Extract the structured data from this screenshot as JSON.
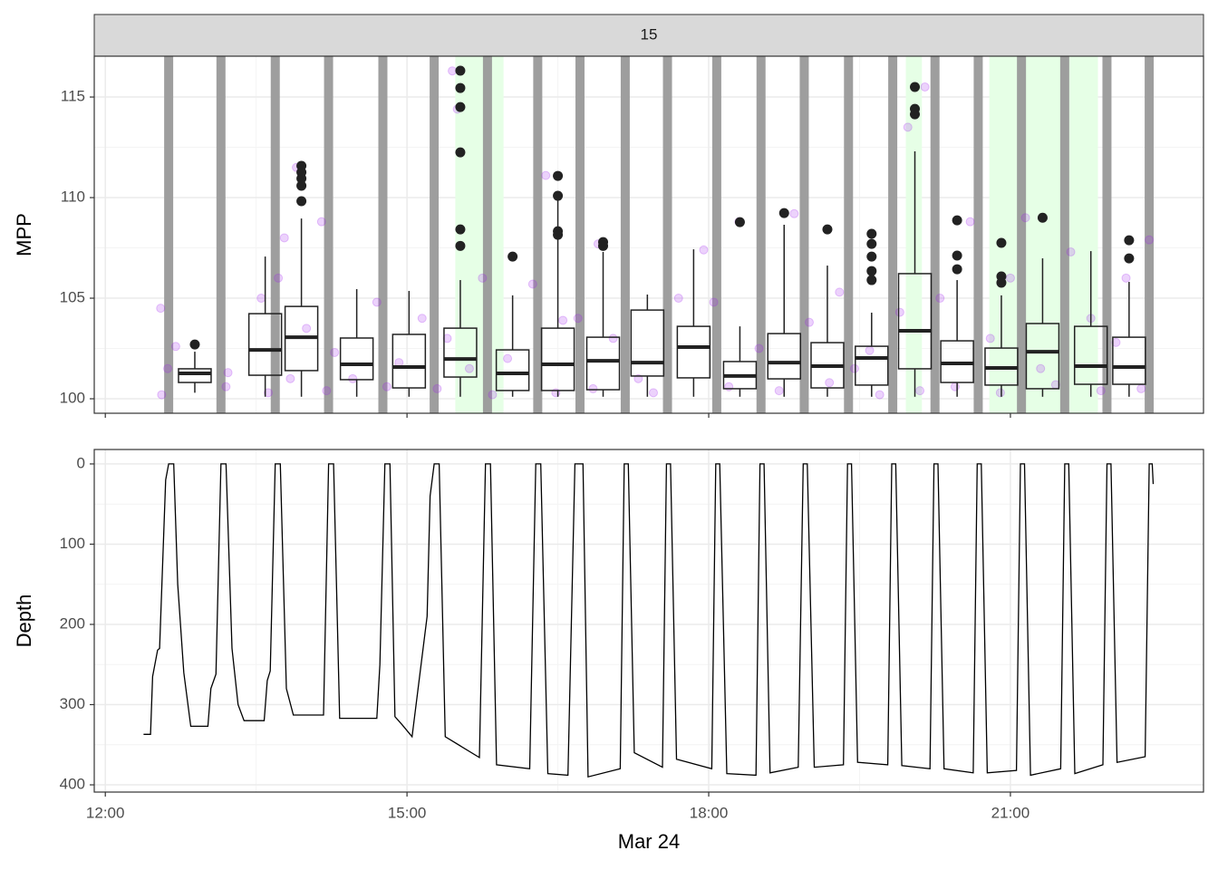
{
  "chart_data": [
    {
      "type": "box",
      "strip": "15",
      "ylabel": "MPP",
      "xlim": [
        11.89,
        22.92
      ],
      "ylim": [
        99.28,
        117.03
      ],
      "yticks": [
        100,
        105,
        110,
        115
      ],
      "grid": true,
      "bands": [
        {
          "color": "#e6ffe6",
          "intervals": [
            [
              15.48,
              15.96
            ],
            [
              19.96,
              20.12
            ],
            [
              20.79,
              21.87
            ]
          ]
        },
        {
          "color": "#999999",
          "intervals": [
            [
              12.585,
              12.675
            ],
            [
              13.105,
              13.195
            ],
            [
              13.645,
              13.735
            ],
            [
              14.175,
              14.265
            ],
            [
              14.715,
              14.805
            ],
            [
              15.225,
              15.315
            ],
            [
              15.755,
              15.845
            ],
            [
              16.255,
              16.345
            ],
            [
              16.675,
              16.765
            ],
            [
              17.125,
              17.215
            ],
            [
              17.545,
              17.635
            ],
            [
              18.035,
              18.125
            ],
            [
              18.475,
              18.565
            ],
            [
              18.905,
              18.995
            ],
            [
              19.345,
              19.435
            ],
            [
              19.785,
              19.875
            ],
            [
              20.205,
              20.295
            ],
            [
              20.635,
              20.725
            ],
            [
              21.065,
              21.155
            ],
            [
              21.495,
              21.585
            ],
            [
              21.915,
              22.005
            ],
            [
              22.335,
              22.425
            ]
          ]
        }
      ],
      "points": {
        "color": "#a020f0",
        "x": [
          12.55,
          12.56,
          12.62,
          12.7,
          13.22,
          13.2,
          13.55,
          13.62,
          13.72,
          13.78,
          13.84,
          13.9,
          14.0,
          14.15,
          14.2,
          14.28,
          14.46,
          14.7,
          14.8,
          14.92,
          15.15,
          15.3,
          15.4,
          15.45,
          15.5,
          15.62,
          15.75,
          15.85,
          16.0,
          16.25,
          16.38,
          16.48,
          16.55,
          16.7,
          16.85,
          16.9,
          17.05,
          17.3,
          17.45,
          17.7,
          17.95,
          18.05,
          18.2,
          18.3,
          18.5,
          18.7,
          18.85,
          19.0,
          19.2,
          19.3,
          19.45,
          19.6,
          19.7,
          19.9,
          19.98,
          20.1,
          20.15,
          20.3,
          20.45,
          20.6,
          20.8,
          20.9,
          21.0,
          21.15,
          21.3,
          21.45,
          21.6,
          21.8,
          21.9,
          22.05,
          22.15,
          22.3,
          22.38
        ],
        "y": [
          104.5,
          100.2,
          101.5,
          102.6,
          101.3,
          100.6,
          105.0,
          100.3,
          106.0,
          108.0,
          101.0,
          111.5,
          103.5,
          108.8,
          100.4,
          102.3,
          101.0,
          104.8,
          100.6,
          101.8,
          104.0,
          100.5,
          103.0,
          116.3,
          114.4,
          101.5,
          106.0,
          100.2,
          102.0,
          105.7,
          111.1,
          100.3,
          103.9,
          104.0,
          100.5,
          107.7,
          103.0,
          101.0,
          100.3,
          105.0,
          107.4,
          104.8,
          100.6,
          108.8,
          102.5,
          100.4,
          109.2,
          103.8,
          100.8,
          105.3,
          101.5,
          102.4,
          100.2,
          104.3,
          113.5,
          100.4,
          115.5,
          105.0,
          100.6,
          108.8,
          103.0,
          100.3,
          106.0,
          109.0,
          101.5,
          100.7,
          107.3,
          104.0,
          100.4,
          102.8,
          106.0,
          100.5,
          107.9
        ]
      },
      "boxes": [
        {
          "x": 12.89,
          "low": 100.3,
          "q1": 100.81,
          "median": 101.26,
          "q3": 101.49,
          "high": 102.34,
          "outliers": [
            102.7
          ]
        },
        {
          "x": 13.59,
          "low": 100.1,
          "q1": 101.17,
          "median": 102.43,
          "q3": 104.23,
          "high": 107.07,
          "outliers": []
        },
        {
          "x": 13.95,
          "low": 100.1,
          "q1": 101.4,
          "median": 103.06,
          "q3": 104.59,
          "high": 108.96,
          "outliers": [
            111.58,
            111.26,
            110.95,
            110.59,
            109.82
          ]
        },
        {
          "x": 14.5,
          "low": 100.1,
          "q1": 100.95,
          "median": 101.71,
          "q3": 103.02,
          "high": 105.45,
          "outliers": []
        },
        {
          "x": 15.02,
          "low": 100.1,
          "q1": 100.54,
          "median": 101.58,
          "q3": 103.2,
          "high": 105.36,
          "outliers": []
        },
        {
          "x": 15.53,
          "low": 100.1,
          "q1": 101.08,
          "median": 101.98,
          "q3": 103.51,
          "high": 105.9,
          "outliers": [
            116.31,
            115.45,
            114.5,
            112.25,
            108.42,
            107.6
          ]
        },
        {
          "x": 16.05,
          "low": 100.1,
          "q1": 100.41,
          "median": 101.26,
          "q3": 102.43,
          "high": 105.14,
          "outliers": [
            107.07
          ]
        },
        {
          "x": 16.5,
          "low": 100.1,
          "q1": 100.41,
          "median": 101.71,
          "q3": 103.51,
          "high": 109.9,
          "outliers": [
            111.08,
            110.09,
            108.33,
            108.15
          ]
        },
        {
          "x": 16.95,
          "low": 100.1,
          "q1": 100.45,
          "median": 101.89,
          "q3": 103.06,
          "high": 107.3,
          "outliers": [
            107.79,
            107.6
          ]
        },
        {
          "x": 17.39,
          "low": 100.1,
          "q1": 101.13,
          "median": 101.8,
          "q3": 104.41,
          "high": 105.18,
          "outliers": []
        },
        {
          "x": 17.85,
          "low": 100.1,
          "q1": 101.04,
          "median": 102.57,
          "q3": 103.6,
          "high": 107.43,
          "outliers": []
        },
        {
          "x": 18.31,
          "low": 100.1,
          "q1": 100.5,
          "median": 101.13,
          "q3": 101.85,
          "high": 103.6,
          "outliers": [
            108.78
          ]
        },
        {
          "x": 18.75,
          "low": 100.1,
          "q1": 100.99,
          "median": 101.8,
          "q3": 103.24,
          "high": 108.65,
          "outliers": [
            109.23
          ]
        },
        {
          "x": 19.18,
          "low": 100.1,
          "q1": 100.54,
          "median": 101.62,
          "q3": 102.79,
          "high": 106.62,
          "outliers": [
            108.42
          ]
        },
        {
          "x": 19.62,
          "low": 100.1,
          "q1": 100.68,
          "median": 102.03,
          "q3": 102.61,
          "high": 104.28,
          "outliers": [
            108.2,
            107.7,
            107.07,
            106.35,
            105.9
          ]
        },
        {
          "x": 20.05,
          "low": 100.1,
          "q1": 101.49,
          "median": 103.38,
          "q3": 106.22,
          "high": 112.3,
          "outliers": [
            115.5,
            114.41,
            114.14
          ]
        },
        {
          "x": 20.47,
          "low": 100.1,
          "q1": 100.81,
          "median": 101.76,
          "q3": 102.88,
          "high": 105.9,
          "outliers": [
            108.87,
            107.12,
            106.44
          ]
        },
        {
          "x": 20.91,
          "low": 100.1,
          "q1": 100.68,
          "median": 101.53,
          "q3": 102.52,
          "high": 105.14,
          "outliers": [
            107.75,
            106.08,
            105.77
          ]
        },
        {
          "x": 21.32,
          "low": 100.1,
          "q1": 100.5,
          "median": 102.34,
          "q3": 103.74,
          "high": 106.98,
          "outliers": [
            109.0
          ]
        },
        {
          "x": 21.8,
          "low": 100.1,
          "q1": 100.72,
          "median": 101.62,
          "q3": 103.6,
          "high": 107.34,
          "outliers": []
        },
        {
          "x": 22.18,
          "low": 100.1,
          "q1": 100.72,
          "median": 101.58,
          "q3": 103.06,
          "high": 105.81,
          "outliers": [
            107.88,
            106.98
          ]
        }
      ]
    },
    {
      "type": "line",
      "ylabel": "Depth",
      "xlabel": "Mar 24",
      "color": "#000000",
      "reversed": true,
      "xlim": [
        11.89,
        22.92
      ],
      "ylim": [
        -18,
        409
      ],
      "yticks": [
        0,
        100,
        200,
        300,
        400
      ],
      "grid": true,
      "xticks": [
        {
          "value": 12,
          "label": "12:00"
        },
        {
          "value": 15,
          "label": "15:00"
        },
        {
          "value": 18,
          "label": "18:00"
        },
        {
          "value": 21,
          "label": "21:00"
        }
      ],
      "x": [
        12.38,
        12.45,
        12.47,
        12.52,
        12.54,
        12.6,
        12.63,
        12.68,
        12.72,
        12.78,
        12.85,
        13.02,
        13.05,
        13.1,
        13.15,
        13.2,
        13.26,
        13.32,
        13.38,
        13.58,
        13.61,
        13.64,
        13.69,
        13.74,
        13.8,
        13.87,
        14.17,
        14.22,
        14.27,
        14.33,
        14.7,
        14.73,
        14.78,
        14.83,
        14.88,
        14.95,
        15.05,
        15.2,
        15.23,
        15.27,
        15.32,
        15.38,
        15.72,
        15.78,
        15.83,
        15.89,
        16.22,
        16.28,
        16.33,
        16.4,
        16.6,
        16.67,
        16.75,
        16.8,
        17.12,
        17.16,
        17.2,
        17.26,
        17.54,
        17.58,
        17.62,
        17.68,
        18.03,
        18.07,
        18.11,
        18.18,
        18.47,
        18.51,
        18.55,
        18.61,
        18.89,
        18.94,
        18.98,
        19.05,
        19.34,
        19.38,
        19.42,
        19.48,
        19.78,
        19.82,
        19.86,
        19.92,
        20.2,
        20.24,
        20.28,
        20.34,
        20.63,
        20.67,
        20.71,
        20.77,
        21.06,
        21.1,
        21.14,
        21.2,
        21.5,
        21.54,
        21.58,
        21.64,
        21.92,
        21.96,
        22.0,
        22.06,
        22.34,
        22.38,
        22.41,
        22.42
      ],
      "y": [
        337,
        337,
        265,
        232,
        230,
        20,
        0,
        0,
        150,
        260,
        327,
        327,
        280,
        262,
        0,
        0,
        230,
        300,
        320,
        320,
        270,
        258,
        0,
        0,
        280,
        313,
        313,
        0,
        0,
        317,
        317,
        250,
        0,
        0,
        315,
        325,
        340,
        190,
        40,
        0,
        0,
        340,
        366,
        0,
        0,
        375,
        380,
        0,
        0,
        386,
        388,
        0,
        0,
        390,
        380,
        0,
        0,
        360,
        378,
        0,
        0,
        368,
        380,
        0,
        0,
        386,
        388,
        0,
        0,
        385,
        378,
        0,
        0,
        378,
        375,
        0,
        0,
        372,
        375,
        0,
        0,
        376,
        380,
        0,
        0,
        380,
        385,
        0,
        0,
        385,
        382,
        0,
        0,
        388,
        380,
        0,
        0,
        386,
        375,
        0,
        0,
        372,
        365,
        0,
        0,
        25
      ]
    }
  ]
}
